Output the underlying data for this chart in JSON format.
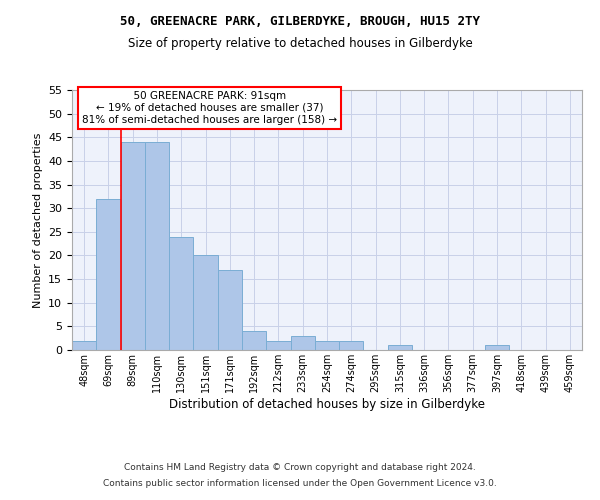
{
  "title1": "50, GREENACRE PARK, GILBERDYKE, BROUGH, HU15 2TY",
  "title2": "Size of property relative to detached houses in Gilberdyke",
  "xlabel": "Distribution of detached houses by size in Gilberdyke",
  "ylabel": "Number of detached properties",
  "categories": [
    "48sqm",
    "69sqm",
    "89sqm",
    "110sqm",
    "130sqm",
    "151sqm",
    "171sqm",
    "192sqm",
    "212sqm",
    "233sqm",
    "254sqm",
    "274sqm",
    "295sqm",
    "315sqm",
    "336sqm",
    "356sqm",
    "377sqm",
    "397sqm",
    "418sqm",
    "439sqm",
    "459sqm"
  ],
  "values": [
    2,
    32,
    44,
    44,
    24,
    20,
    17,
    4,
    2,
    3,
    2,
    2,
    0,
    1,
    0,
    0,
    0,
    1,
    0,
    0,
    0
  ],
  "bar_color": "#aec6e8",
  "bar_edge_color": "#7aadd4",
  "property_line_x": 1.5,
  "annotation_text": "  50 GREENACRE PARK: 91sqm  \n← 19% of detached houses are smaller (37)\n81% of semi-detached houses are larger (158) →",
  "ylim": [
    0,
    55
  ],
  "yticks": [
    0,
    5,
    10,
    15,
    20,
    25,
    30,
    35,
    40,
    45,
    50,
    55
  ],
  "footer1": "Contains HM Land Registry data © Crown copyright and database right 2024.",
  "footer2": "Contains public sector information licensed under the Open Government Licence v3.0.",
  "bg_color": "#eef2fb",
  "grid_color": "#c8d0e8"
}
